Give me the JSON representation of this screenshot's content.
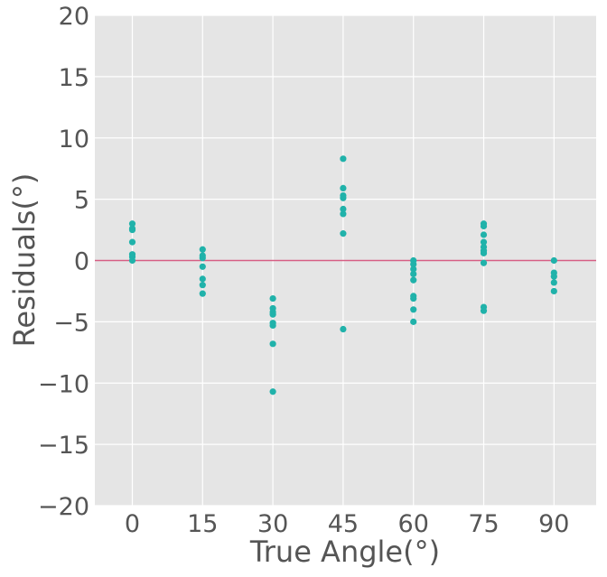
{
  "chart_data": {
    "type": "scatter",
    "title": "",
    "xlabel": "True Angle(°)",
    "ylabel": "Residuals(°)",
    "xlim": [
      -8,
      99
    ],
    "ylim": [
      -20,
      20
    ],
    "x_ticks": [
      0,
      15,
      30,
      45,
      60,
      75,
      90
    ],
    "y_ticks": [
      -20,
      -15,
      -10,
      -5,
      0,
      5,
      10,
      15,
      20
    ],
    "x_tick_labels": [
      "0",
      "15",
      "30",
      "45",
      "60",
      "75",
      "90"
    ],
    "y_tick_labels": [
      "−20",
      "−15",
      "−10",
      "−5",
      "0",
      "5",
      "10",
      "15",
      "20"
    ],
    "grid": true,
    "reference_line": {
      "y": 0,
      "color": "#d65f84"
    },
    "point_color": "#20b2aa",
    "background_color": "#e5e5e5",
    "points": [
      {
        "x": 0,
        "y": 3.0
      },
      {
        "x": 0,
        "y": 2.6
      },
      {
        "x": 0,
        "y": 2.5
      },
      {
        "x": 0,
        "y": 1.5
      },
      {
        "x": 0,
        "y": 0.5
      },
      {
        "x": 0,
        "y": 0.3
      },
      {
        "x": 0,
        "y": 0.0
      },
      {
        "x": 15,
        "y": 0.9
      },
      {
        "x": 15,
        "y": 0.4
      },
      {
        "x": 15,
        "y": 0.2
      },
      {
        "x": 15,
        "y": -0.5
      },
      {
        "x": 15,
        "y": -1.5
      },
      {
        "x": 15,
        "y": -2.0
      },
      {
        "x": 15,
        "y": -2.7
      },
      {
        "x": 30,
        "y": -3.1
      },
      {
        "x": 30,
        "y": -3.9
      },
      {
        "x": 30,
        "y": -4.2
      },
      {
        "x": 30,
        "y": -4.4
      },
      {
        "x": 30,
        "y": -5.1
      },
      {
        "x": 30,
        "y": -5.3
      },
      {
        "x": 30,
        "y": -6.8
      },
      {
        "x": 30,
        "y": -10.7
      },
      {
        "x": 45,
        "y": 8.3
      },
      {
        "x": 45,
        "y": 5.9
      },
      {
        "x": 45,
        "y": 5.3
      },
      {
        "x": 45,
        "y": 5.1
      },
      {
        "x": 45,
        "y": 4.2
      },
      {
        "x": 45,
        "y": 3.8
      },
      {
        "x": 45,
        "y": 2.2
      },
      {
        "x": 45,
        "y": -5.6
      },
      {
        "x": 60,
        "y": 0.0
      },
      {
        "x": 60,
        "y": -0.3
      },
      {
        "x": 60,
        "y": -0.7
      },
      {
        "x": 60,
        "y": -1.1
      },
      {
        "x": 60,
        "y": -1.6
      },
      {
        "x": 60,
        "y": -2.9
      },
      {
        "x": 60,
        "y": -3.1
      },
      {
        "x": 60,
        "y": -4.0
      },
      {
        "x": 60,
        "y": -5.0
      },
      {
        "x": 75,
        "y": 3.0
      },
      {
        "x": 75,
        "y": 2.8
      },
      {
        "x": 75,
        "y": 2.1
      },
      {
        "x": 75,
        "y": 1.5
      },
      {
        "x": 75,
        "y": 1.1
      },
      {
        "x": 75,
        "y": 0.8
      },
      {
        "x": 75,
        "y": 0.6
      },
      {
        "x": 75,
        "y": -0.2
      },
      {
        "x": 75,
        "y": -3.8
      },
      {
        "x": 75,
        "y": -4.1
      },
      {
        "x": 90,
        "y": 0.0
      },
      {
        "x": 90,
        "y": -1.0
      },
      {
        "x": 90,
        "y": -1.3
      },
      {
        "x": 90,
        "y": -1.8
      },
      {
        "x": 90,
        "y": -2.5
      }
    ]
  }
}
